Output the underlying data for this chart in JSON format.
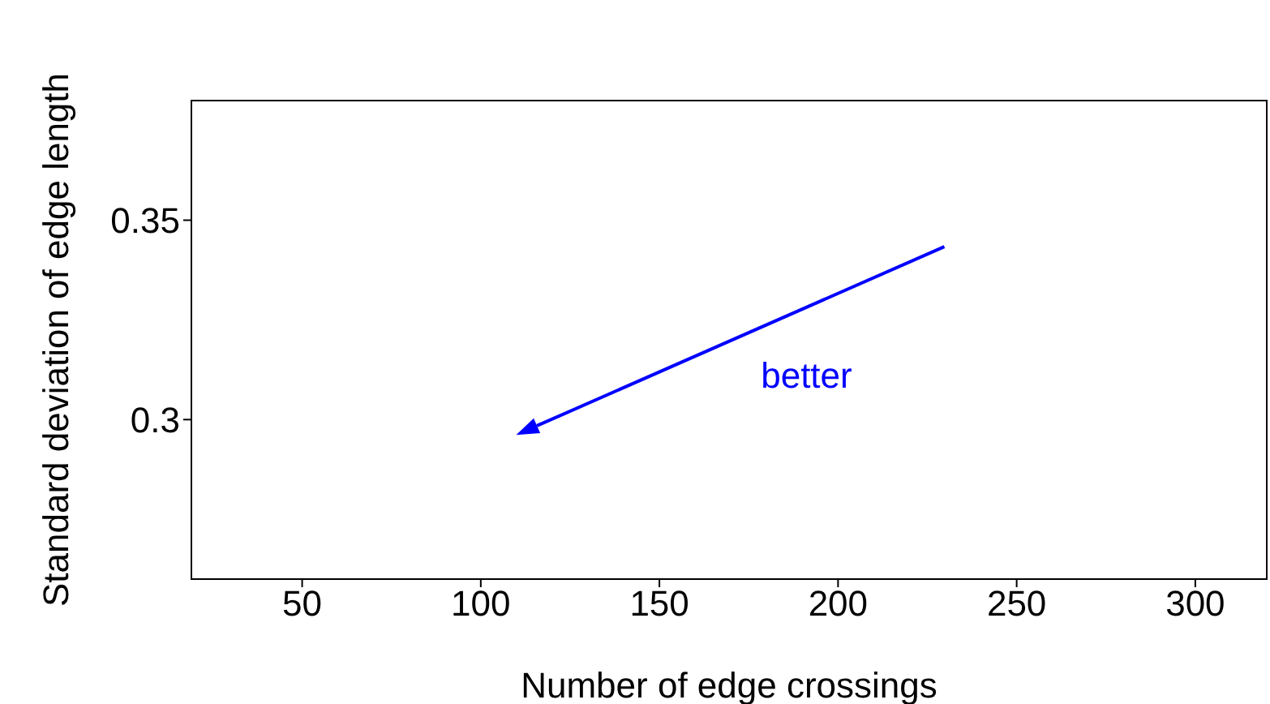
{
  "chart_data": {
    "type": "scatter",
    "xlabel": "Number of edge crossings",
    "ylabel": "Standard deviation of edge length",
    "color": "#0000ff",
    "xlim": [
      19,
      320
    ],
    "xticks": [
      50,
      100,
      150,
      200,
      250,
      300
    ],
    "ylim": [
      0.26,
      0.38
    ],
    "yticks": [
      0.3,
      0.35
    ],
    "annotations": [
      "better"
    ]
  }
}
